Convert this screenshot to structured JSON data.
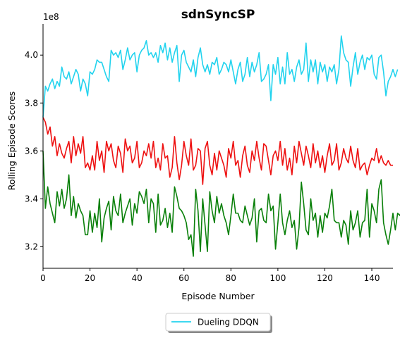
{
  "chart_data": {
    "type": "line",
    "title": "sdnSyncSP",
    "xlabel": "Episode Number",
    "ylabel": "Rolling Episode Scores",
    "y_offset_label": "1e8",
    "xlim": [
      0,
      149
    ],
    "ylim": [
      3.11,
      4.13
    ],
    "x_ticks": [
      0,
      20,
      40,
      60,
      80,
      100,
      120,
      140
    ],
    "y_ticks": [
      3.2,
      3.4,
      3.6,
      3.8,
      4.0
    ],
    "grid": false,
    "legend_placement": "bottom-center",
    "legend": [
      {
        "label": "Dueling DDQN",
        "color": "#22d3ee"
      }
    ],
    "series": [
      {
        "color": "#22d3ee",
        "values": [
          3.74,
          3.87,
          3.85,
          3.88,
          3.9,
          3.86,
          3.89,
          3.87,
          3.95,
          3.91,
          3.9,
          3.93,
          3.88,
          3.91,
          3.94,
          3.92,
          3.85,
          3.9,
          3.88,
          3.83,
          3.93,
          3.92,
          3.94,
          3.98,
          3.97,
          3.97,
          3.94,
          3.91,
          3.89,
          4.02,
          4.0,
          4.01,
          3.99,
          4.02,
          3.94,
          3.98,
          4.03,
          3.98,
          4.0,
          4.01,
          3.93,
          4.0,
          4.02,
          4.03,
          4.06,
          4.0,
          4.01,
          3.99,
          4.01,
          3.97,
          4.04,
          4.01,
          4.05,
          3.98,
          4.03,
          3.97,
          4.01,
          4.04,
          3.89,
          4.0,
          4.02,
          3.97,
          3.95,
          3.93,
          3.98,
          3.91,
          3.99,
          4.03,
          3.96,
          3.93,
          3.96,
          3.92,
          3.97,
          3.96,
          3.99,
          3.92,
          3.94,
          3.97,
          3.96,
          3.93,
          3.98,
          3.93,
          3.88,
          3.94,
          3.97,
          3.89,
          3.92,
          3.99,
          3.91,
          3.97,
          3.93,
          3.96,
          4.01,
          3.89,
          3.9,
          3.92,
          3.96,
          3.81,
          3.96,
          3.92,
          3.99,
          3.88,
          3.95,
          3.88,
          4.01,
          3.92,
          3.94,
          3.89,
          3.95,
          3.98,
          3.92,
          3.94,
          4.05,
          3.89,
          3.98,
          3.93,
          3.98,
          3.88,
          3.97,
          3.93,
          3.96,
          3.89,
          3.95,
          3.93,
          3.96,
          3.88,
          3.94,
          4.08,
          4.01,
          3.98,
          3.97,
          3.87,
          3.95,
          4.01,
          3.92,
          3.97,
          4.0,
          3.94,
          3.99,
          3.98,
          4.0,
          3.92,
          3.9,
          3.99,
          4.0,
          3.93,
          3.83,
          3.89,
          3.91,
          3.94,
          3.91,
          3.94
        ]
      },
      {
        "color": "#ee1111",
        "values": [
          3.74,
          3.72,
          3.67,
          3.7,
          3.62,
          3.66,
          3.58,
          3.63,
          3.59,
          3.57,
          3.61,
          3.64,
          3.55,
          3.66,
          3.58,
          3.63,
          3.59,
          3.66,
          3.53,
          3.55,
          3.52,
          3.58,
          3.52,
          3.64,
          3.56,
          3.6,
          3.51,
          3.64,
          3.6,
          3.63,
          3.56,
          3.53,
          3.62,
          3.59,
          3.51,
          3.65,
          3.6,
          3.62,
          3.55,
          3.57,
          3.64,
          3.53,
          3.55,
          3.6,
          3.58,
          3.63,
          3.57,
          3.64,
          3.53,
          3.57,
          3.52,
          3.63,
          3.57,
          3.58,
          3.49,
          3.53,
          3.66,
          3.55,
          3.48,
          3.54,
          3.64,
          3.58,
          3.54,
          3.65,
          3.52,
          3.54,
          3.61,
          3.6,
          3.46,
          3.61,
          3.64,
          3.54,
          3.5,
          3.59,
          3.52,
          3.6,
          3.57,
          3.54,
          3.49,
          3.61,
          3.57,
          3.64,
          3.54,
          3.56,
          3.49,
          3.58,
          3.62,
          3.54,
          3.51,
          3.6,
          3.56,
          3.64,
          3.57,
          3.52,
          3.63,
          3.62,
          3.56,
          3.5,
          3.58,
          3.6,
          3.56,
          3.64,
          3.54,
          3.61,
          3.52,
          3.57,
          3.5,
          3.62,
          3.55,
          3.64,
          3.59,
          3.54,
          3.62,
          3.58,
          3.53,
          3.63,
          3.55,
          3.6,
          3.53,
          3.58,
          3.51,
          3.58,
          3.63,
          3.54,
          3.56,
          3.63,
          3.52,
          3.55,
          3.61,
          3.57,
          3.55,
          3.62,
          3.56,
          3.53,
          3.61,
          3.52,
          3.54,
          3.55,
          3.5,
          3.54,
          3.57,
          3.56,
          3.61,
          3.55,
          3.58,
          3.55,
          3.54,
          3.56,
          3.54,
          3.54
        ]
      },
      {
        "color": "#0a800a",
        "values": [
          3.6,
          3.36,
          3.45,
          3.38,
          3.34,
          3.3,
          3.43,
          3.37,
          3.44,
          3.36,
          3.4,
          3.5,
          3.33,
          3.41,
          3.32,
          3.38,
          3.35,
          3.33,
          3.25,
          3.25,
          3.35,
          3.26,
          3.34,
          3.28,
          3.4,
          3.22,
          3.32,
          3.36,
          3.39,
          3.27,
          3.41,
          3.35,
          3.33,
          3.42,
          3.3,
          3.34,
          3.37,
          3.4,
          3.29,
          3.38,
          3.34,
          3.43,
          3.41,
          3.38,
          3.44,
          3.3,
          3.4,
          3.38,
          3.26,
          3.42,
          3.29,
          3.31,
          3.36,
          3.28,
          3.34,
          3.26,
          3.45,
          3.41,
          3.36,
          3.35,
          3.33,
          3.3,
          3.23,
          3.25,
          3.16,
          3.44,
          3.35,
          3.18,
          3.4,
          3.29,
          3.18,
          3.43,
          3.35,
          3.3,
          3.41,
          3.34,
          3.38,
          3.33,
          3.3,
          3.25,
          3.33,
          3.42,
          3.34,
          3.34,
          3.31,
          3.3,
          3.37,
          3.33,
          3.29,
          3.32,
          3.4,
          3.22,
          3.35,
          3.36,
          3.31,
          3.3,
          3.42,
          3.35,
          3.37,
          3.19,
          3.3,
          3.42,
          3.3,
          3.25,
          3.31,
          3.35,
          3.28,
          3.31,
          3.19,
          3.28,
          3.47,
          3.38,
          3.27,
          3.25,
          3.4,
          3.31,
          3.34,
          3.24,
          3.33,
          3.26,
          3.34,
          3.32,
          3.37,
          3.44,
          3.31,
          3.3,
          3.3,
          3.24,
          3.31,
          3.29,
          3.21,
          3.35,
          3.27,
          3.3,
          3.35,
          3.24,
          3.3,
          3.31,
          3.44,
          3.24,
          3.38,
          3.35,
          3.3,
          3.44,
          3.48,
          3.3,
          3.25,
          3.21,
          3.27,
          3.34,
          3.27,
          3.34,
          3.33,
          3.37,
          3.34,
          3.3
        ]
      }
    ]
  }
}
